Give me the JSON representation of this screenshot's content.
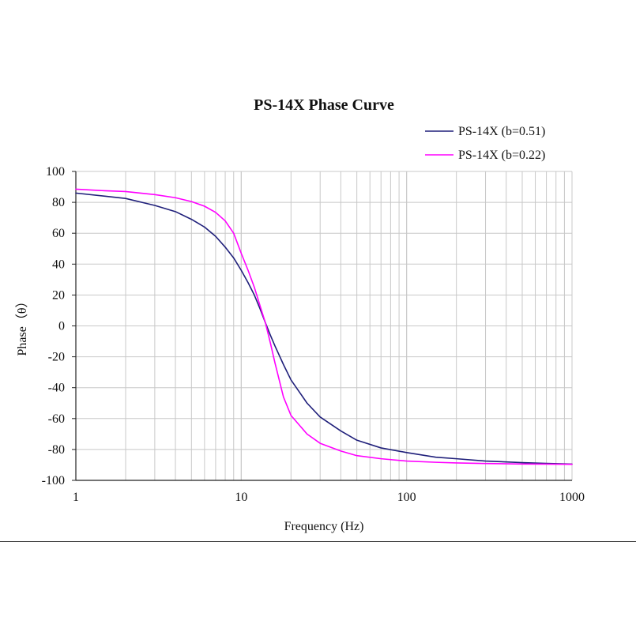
{
  "chart_data": {
    "type": "line",
    "title": "PS-14X Phase Curve",
    "xlabel": "Frequency (Hz)",
    "ylabel": "Phase（θ）",
    "xscale": "log",
    "xlim": [
      1,
      1000
    ],
    "ylim": [
      -100,
      100
    ],
    "x_ticks": [
      1,
      10,
      100,
      1000
    ],
    "x_tick_labels": [
      "1",
      "10",
      "100",
      "1000"
    ],
    "y_ticks": [
      100,
      80,
      60,
      40,
      20,
      0,
      -20,
      -40,
      -60,
      -80,
      -100
    ],
    "y_tick_labels": [
      "100",
      "80",
      "60",
      "40",
      "20",
      "0",
      "-20",
      "-40",
      "-60",
      "-80",
      "-100"
    ],
    "grid": true,
    "legend_position": "top-right",
    "x": [
      1,
      1.5,
      2,
      3,
      4,
      5,
      6,
      7,
      8,
      9,
      10,
      11,
      12,
      13,
      14,
      15,
      16,
      18,
      20,
      25,
      30,
      40,
      50,
      70,
      100,
      150,
      200,
      300,
      500,
      700,
      1000
    ],
    "series": [
      {
        "name": "PS-14X (b=0.51)",
        "color": "#1f1f7a",
        "values": [
          86,
          84,
          82.5,
          78,
          74,
          69,
          64,
          58,
          51,
          44,
          36,
          28,
          20,
          11,
          2,
          -6,
          -13,
          -25,
          -35,
          -50,
          -59,
          -68,
          -74,
          -79,
          -82,
          -85,
          -86,
          -87.5,
          -88.5,
          -89,
          -89.5
        ]
      },
      {
        "name": "PS-14X (b=0.22)",
        "color": "#ff00ff",
        "values": [
          88.5,
          87.5,
          87,
          85,
          83,
          80.5,
          77.5,
          73.5,
          68,
          60,
          47,
          36,
          25,
          13,
          2,
          -11,
          -24,
          -46,
          -58,
          -70,
          -76,
          -81,
          -84,
          -86,
          -87.5,
          -88.3,
          -88.7,
          -89.1,
          -89.4,
          -89.5,
          -89.6
        ]
      }
    ]
  }
}
